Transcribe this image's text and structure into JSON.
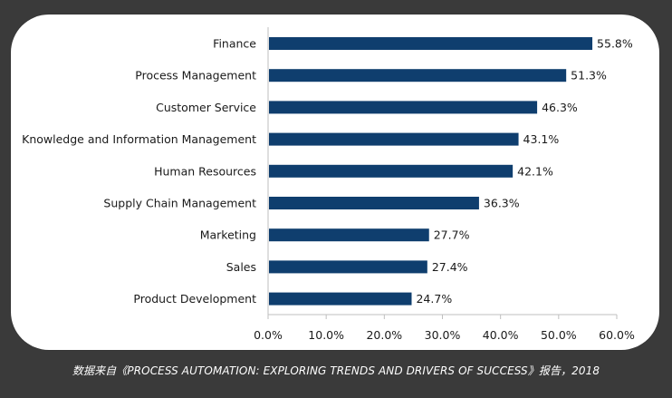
{
  "colors": {
    "bar": "#0f3e6e",
    "axis": "#bfbfbf",
    "page_background": "#3a3a3a",
    "card_background": "#ffffff"
  },
  "chart_data": {
    "type": "bar",
    "orientation": "horizontal",
    "title": "",
    "xlabel": "",
    "ylabel": "",
    "categories": [
      "Finance",
      "Process Management",
      "Customer Service",
      "Knowledge and Information Management",
      "Human Resources",
      "Supply Chain Management",
      "Marketing",
      "Sales",
      "Product Development"
    ],
    "values": [
      55.8,
      51.3,
      46.3,
      43.1,
      42.1,
      36.3,
      27.7,
      27.4,
      24.7
    ],
    "value_labels": [
      "55.8%",
      "51.3%",
      "46.3%",
      "43.1%",
      "42.1%",
      "36.3%",
      "27.7%",
      "27.4%",
      "24.7%"
    ],
    "xlim": [
      0,
      60
    ],
    "xticks": [
      0,
      10,
      20,
      30,
      40,
      50,
      60
    ],
    "xtick_labels": [
      "0.0%",
      "10.0%",
      "20.0%",
      "30.0%",
      "40.0%",
      "50.0%",
      "60.0%"
    ],
    "grid": false,
    "legend": "none"
  },
  "caption": "数据来自《PROCESS AUTOMATION: EXPLORING TRENDS AND DRIVERS OF SUCCESS》报告，2018"
}
